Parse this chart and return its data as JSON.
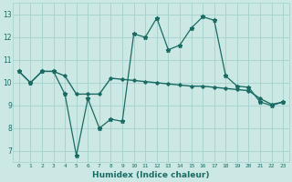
{
  "title": "",
  "xlabel": "Humidex (Indice chaleur)",
  "ylabel": "",
  "background_color": "#cce8e5",
  "grid_color": "#a8d4d0",
  "line_color": "#1a6b63",
  "xlim": [
    -0.5,
    23.5
  ],
  "ylim": [
    6.5,
    13.5
  ],
  "yticks": [
    7,
    8,
    9,
    10,
    11,
    12,
    13
  ],
  "xticks": [
    0,
    1,
    2,
    3,
    4,
    5,
    6,
    7,
    8,
    9,
    10,
    11,
    12,
    13,
    14,
    15,
    16,
    17,
    18,
    19,
    20,
    21,
    22,
    23
  ],
  "line1_x": [
    0,
    1,
    2,
    3,
    4,
    5,
    6,
    7,
    8,
    9,
    10,
    11,
    12,
    13,
    14,
    15,
    16,
    17,
    18,
    19,
    20,
    21,
    22,
    23
  ],
  "line1_y": [
    10.5,
    10.0,
    10.5,
    10.5,
    9.5,
    6.8,
    9.3,
    8.0,
    8.4,
    8.3,
    12.15,
    12.0,
    12.85,
    11.45,
    11.65,
    12.4,
    12.9,
    12.75,
    10.3,
    9.85,
    9.8,
    9.15,
    9.0,
    9.15
  ],
  "line2_x": [
    0,
    1,
    2,
    3,
    4,
    5,
    6,
    7,
    8,
    9,
    10,
    11,
    12,
    13,
    14,
    15,
    16,
    17,
    18,
    19,
    20,
    21,
    22,
    23
  ],
  "line2_y": [
    10.5,
    10.0,
    10.5,
    10.5,
    10.3,
    9.5,
    9.5,
    9.5,
    10.2,
    10.15,
    10.1,
    10.05,
    10.0,
    9.95,
    9.9,
    9.85,
    9.85,
    9.8,
    9.75,
    9.7,
    9.65,
    9.3,
    9.05,
    9.15
  ]
}
